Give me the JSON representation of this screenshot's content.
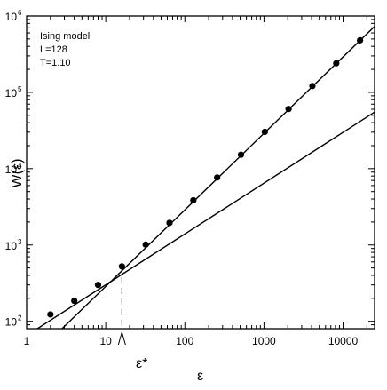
{
  "chart_data": {
    "type": "scatter",
    "x_scale": "log",
    "y_scale": "log",
    "xlim": [
      1,
      25000
    ],
    "ylim": [
      80,
      1000000
    ],
    "grid": false,
    "xlabel": "ε",
    "ylabel": "W(ε)",
    "x_ticks": [
      {
        "value": 1,
        "label": "1"
      },
      {
        "value": 10,
        "label": "10"
      },
      {
        "value": 100,
        "label": "100"
      },
      {
        "value": 1000,
        "label": "1000"
      },
      {
        "value": 10000,
        "label": "10000"
      }
    ],
    "y_ticks": [
      {
        "value": 100,
        "base": "10",
        "exp": "2"
      },
      {
        "value": 1000,
        "base": "10",
        "exp": "3"
      },
      {
        "value": 10000,
        "base": "10",
        "exp": "4"
      },
      {
        "value": 100000,
        "base": "10",
        "exp": "5"
      },
      {
        "value": 1000000,
        "base": "10",
        "exp": "6"
      }
    ],
    "annotation_lines": [
      "Ising model",
      "L=128",
      "T=1.10"
    ],
    "epsilon_star": {
      "x": 16,
      "label": "ε*"
    },
    "series": [
      {
        "type": "scatter",
        "x": [
          2,
          4,
          8,
          16,
          32,
          64,
          128,
          256,
          512,
          1024,
          2048,
          4096,
          8192,
          16384
        ],
        "y": [
          123,
          186,
          300,
          525,
          1010,
          1950,
          3850,
          7650,
          15200,
          30300,
          60500,
          121000,
          240000,
          480000
        ]
      }
    ],
    "fit_lines": [
      {
        "x": [
          1,
          25000
        ],
        "y": [
          65,
          55000
        ]
      },
      {
        "x": [
          2.8,
          25000
        ],
        "y": [
          80,
          730000
        ]
      }
    ]
  }
}
